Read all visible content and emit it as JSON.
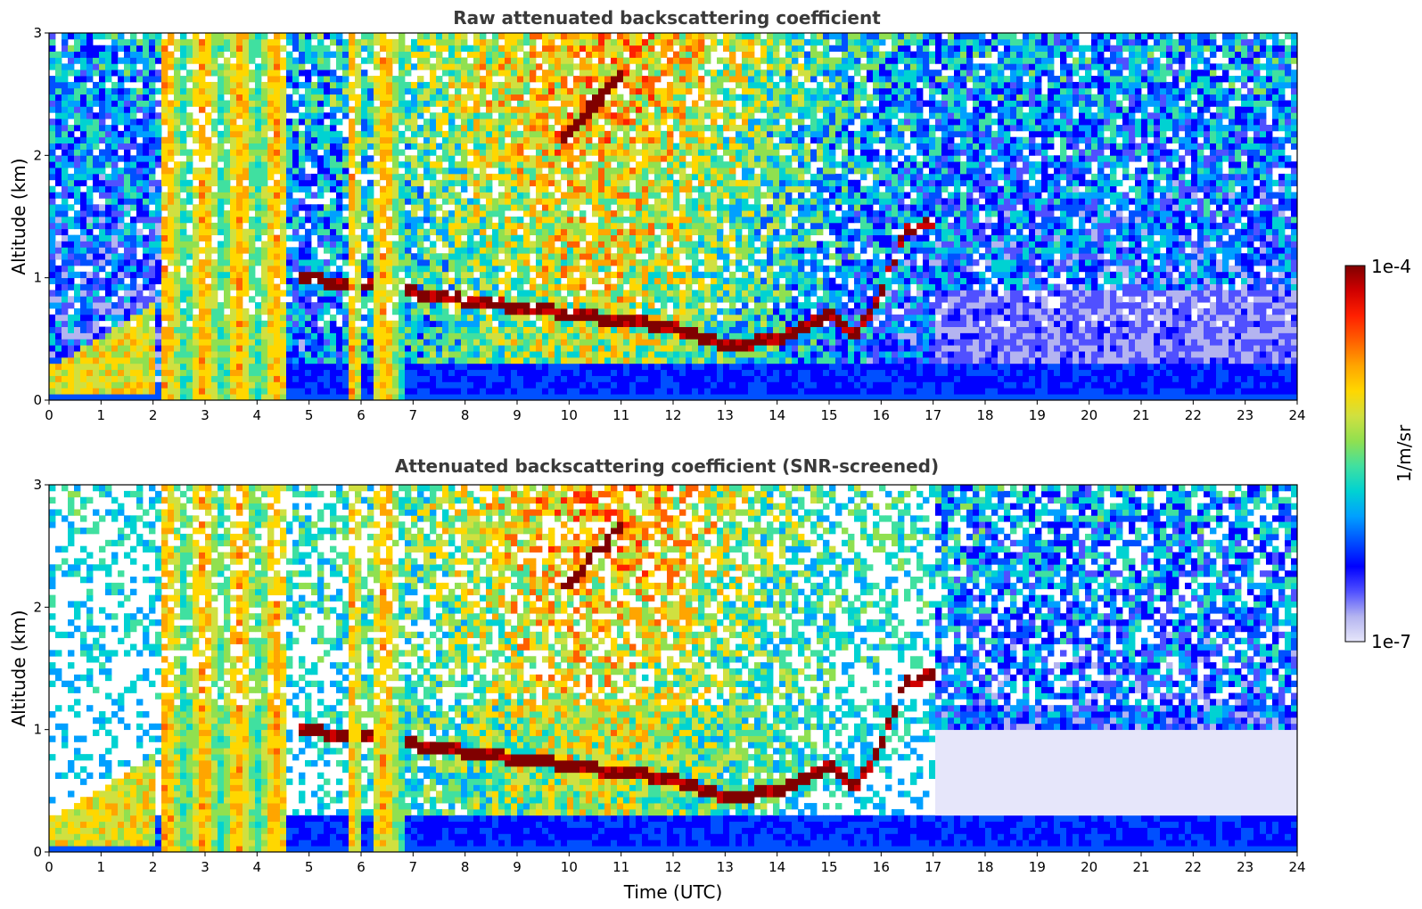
{
  "chart_data": [
    {
      "type": "heatmap",
      "title": "Raw attenuated backscattering coefficient",
      "xlabel": "",
      "ylabel": "Altitude (km)",
      "xlim": [
        0,
        24
      ],
      "ylim": [
        0,
        3
      ],
      "xticks": [
        "0",
        "1",
        "2",
        "3",
        "4",
        "5",
        "6",
        "7",
        "8",
        "9",
        "10",
        "11",
        "12",
        "13",
        "14",
        "15",
        "16",
        "17",
        "18",
        "19",
        "20",
        "21",
        "22",
        "23",
        "24"
      ],
      "yticks": [
        "0",
        "1",
        "2",
        "3"
      ],
      "grid": false,
      "colorscale": "log",
      "features": {
        "boundary_layer_top_km": [
          [
            0,
            0.28
          ],
          [
            1,
            0.5
          ],
          [
            2,
            0.8
          ],
          [
            4,
            1.05
          ],
          [
            11,
            0.65
          ],
          [
            12,
            0.6
          ],
          [
            13,
            0.45
          ],
          [
            14,
            0.5
          ],
          [
            15,
            0.7
          ],
          [
            15.5,
            0.5
          ],
          [
            16,
            0.9
          ],
          [
            16.5,
            1.4
          ],
          [
            17,
            1.45
          ]
        ],
        "elevated_cloud_layer_km": [
          [
            9.8,
            2.1
          ],
          [
            10.5,
            2.4
          ],
          [
            11,
            2.65
          ]
        ]
      }
    },
    {
      "type": "heatmap",
      "title": "Attenuated backscattering coefficient (SNR-screened)",
      "xlabel": "Time (UTC)",
      "ylabel": "Altitude (km)",
      "xlim": [
        0,
        24
      ],
      "ylim": [
        0,
        3
      ],
      "xticks": [
        "0",
        "1",
        "2",
        "3",
        "4",
        "5",
        "6",
        "7",
        "8",
        "9",
        "10",
        "11",
        "12",
        "13",
        "14",
        "15",
        "16",
        "17",
        "18",
        "19",
        "20",
        "21",
        "22",
        "23",
        "24"
      ],
      "yticks": [
        "0",
        "1",
        "2",
        "3"
      ],
      "grid": false,
      "colorscale": "log"
    }
  ],
  "colorbar": {
    "label": "1/m/sr",
    "max_label": "1e-4",
    "min_label": "1e-7",
    "colors": [
      "#e6e6fa",
      "#b4b4f0",
      "#5050ff",
      "#0000ff",
      "#0050ff",
      "#00a0ff",
      "#00d2d2",
      "#40e0a0",
      "#90e050",
      "#d0e040",
      "#ffd700",
      "#ffa500",
      "#ff6000",
      "#ff2000",
      "#d00000",
      "#800000"
    ]
  }
}
